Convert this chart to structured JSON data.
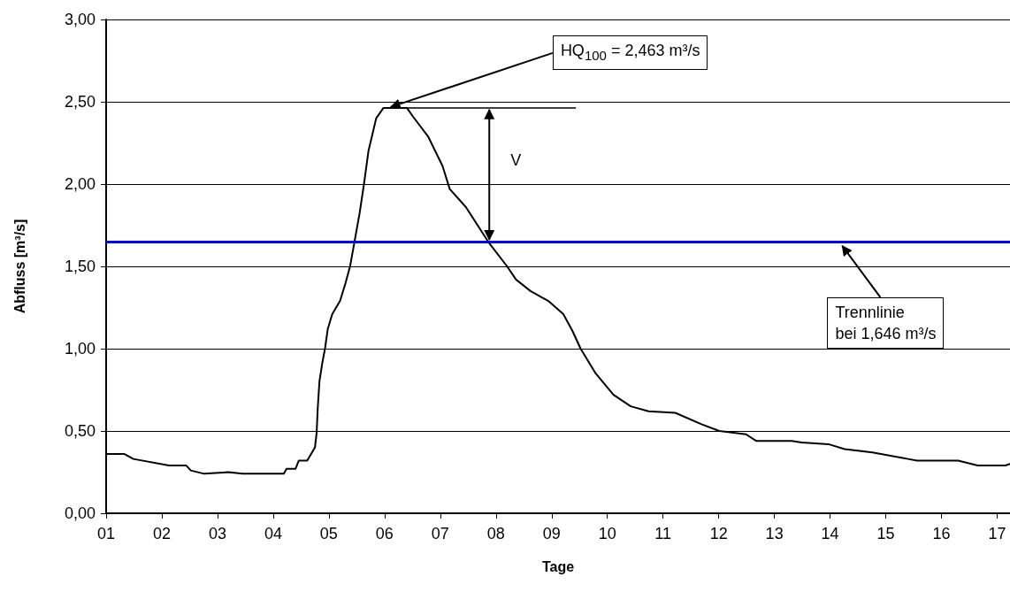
{
  "chart_data": {
    "type": "line",
    "xlabel": "Tage",
    "ylabel": "Abfluss [m³/s]",
    "xlim": [
      1,
      17.23
    ],
    "xticks": [
      {
        "value": 1,
        "label": "01"
      },
      {
        "value": 2,
        "label": "02"
      },
      {
        "value": 3,
        "label": "03"
      },
      {
        "value": 4,
        "label": "04"
      },
      {
        "value": 5,
        "label": "05"
      },
      {
        "value": 6,
        "label": "06"
      },
      {
        "value": 7,
        "label": "07"
      },
      {
        "value": 8,
        "label": "08"
      },
      {
        "value": 9,
        "label": "09"
      },
      {
        "value": 10,
        "label": "10"
      },
      {
        "value": 11,
        "label": "11"
      },
      {
        "value": 12,
        "label": "12"
      },
      {
        "value": 13,
        "label": "13"
      },
      {
        "value": 14,
        "label": "14"
      },
      {
        "value": 15,
        "label": "15"
      },
      {
        "value": 16,
        "label": "16"
      },
      {
        "value": 17,
        "label": "17"
      }
    ],
    "ylim": [
      0,
      3
    ],
    "yticks": [
      {
        "value": 0,
        "label": "0,00"
      },
      {
        "value": 0.5,
        "label": "0,50"
      },
      {
        "value": 1,
        "label": "1,00"
      },
      {
        "value": 1.5,
        "label": "1,50"
      },
      {
        "value": 2,
        "label": "2,00"
      },
      {
        "value": 2.5,
        "label": "2,50"
      },
      {
        "value": 3,
        "label": "3,00"
      }
    ],
    "grid": "y",
    "marker": "none",
    "line_style": "solid",
    "series": [
      {
        "color": "#000000",
        "x": [
          1,
          1.33,
          1.49,
          2.13,
          2.44,
          2.52,
          2.76,
          3.19,
          3.45,
          4.19,
          4.24,
          4.4,
          4.46,
          4.61,
          4.75,
          4.78,
          4.8,
          4.83,
          4.88,
          4.93,
          4.98,
          5.06,
          5.2,
          5.3,
          5.38,
          5.46,
          5.55,
          5.63,
          5.71,
          5.85,
          5.98,
          6.4,
          6.51,
          6.78,
          7.04,
          7.17,
          7.46,
          7.88,
          8.2,
          8.36,
          8.62,
          8.94,
          9.21,
          9.37,
          9.52,
          9.79,
          10.11,
          10.42,
          10.74,
          11.22,
          11.7,
          12.01,
          12.49,
          12.67,
          13.31,
          13.49,
          13.97,
          14.26,
          14.76,
          15.4,
          15.56,
          16.3,
          16.65,
          17.15,
          17.23
        ],
        "values": [
          0.36,
          0.36,
          0.33,
          0.29,
          0.29,
          0.26,
          0.24,
          0.25,
          0.24,
          0.24,
          0.27,
          0.27,
          0.32,
          0.32,
          0.4,
          0.49,
          0.64,
          0.8,
          0.91,
          1,
          1.12,
          1.21,
          1.29,
          1.4,
          1.5,
          1.65,
          1.82,
          2,
          2.2,
          2.4,
          2.463,
          2.463,
          2.41,
          2.29,
          2.11,
          1.97,
          1.86,
          1.64,
          1.5,
          1.42,
          1.35,
          1.29,
          1.21,
          1.11,
          1,
          0.85,
          0.72,
          0.65,
          0.62,
          0.61,
          0.54,
          0.5,
          0.48,
          0.44,
          0.44,
          0.43,
          0.42,
          0.39,
          0.37,
          0.33,
          0.32,
          0.32,
          0.29,
          0.29,
          0.3
        ]
      }
    ],
    "ref_lines": [
      {
        "axis": "y",
        "value": 1.646,
        "label": "Trennlinie\nbei 1,646 m³/s",
        "color": "#0000ff"
      }
    ],
    "annotations": [
      {
        "text": "HQ$_{100}$ = 2,463 m³/s",
        "x": 6.08,
        "y": 2.463
      },
      "V"
    ]
  }
}
